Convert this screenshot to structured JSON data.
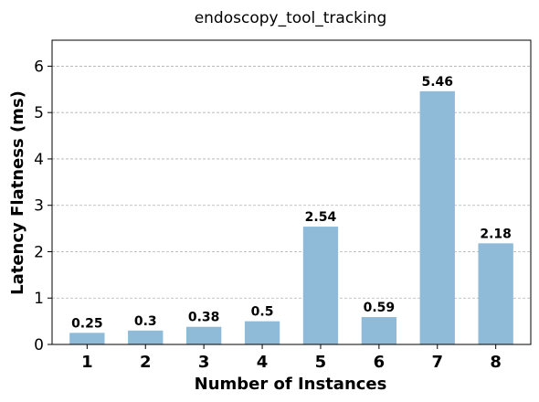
{
  "chart_data": {
    "type": "bar",
    "title": "endoscopy_tool_tracking",
    "xlabel": "Number of Instances",
    "ylabel": "Latency Flatness (ms)",
    "categories": [
      "1",
      "2",
      "3",
      "4",
      "5",
      "6",
      "7",
      "8"
    ],
    "values": [
      0.25,
      0.3,
      0.38,
      0.5,
      2.54,
      0.59,
      5.46,
      2.18
    ],
    "data_labels": [
      "0.25",
      "0.3",
      "0.38",
      "0.5",
      "2.54",
      "0.59",
      "5.46",
      "2.18"
    ],
    "yticks": [
      0,
      1,
      2,
      3,
      4,
      5,
      6
    ],
    "ylim": [
      0,
      6.56
    ],
    "grid": "y-dashed",
    "bar_color": "#8fbbd9"
  }
}
